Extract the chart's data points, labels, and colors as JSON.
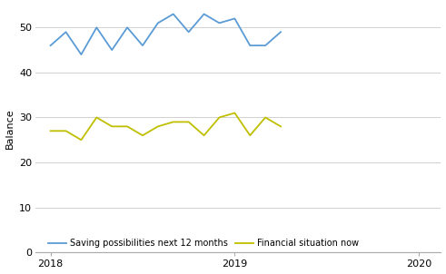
{
  "saving_values": [
    46,
    49,
    44,
    50,
    45,
    50,
    46,
    51,
    53,
    49,
    53,
    51,
    52,
    46,
    46,
    49
  ],
  "financial_values": [
    27,
    27,
    25,
    30,
    28,
    28,
    26,
    28,
    29,
    29,
    26,
    30,
    31,
    26,
    30,
    28
  ],
  "x_start": 2018.0,
  "x_step": 0.08333,
  "n_points": 16,
  "saving_color": "#5B9BD5",
  "financial_color": "#BFBF00",
  "ylabel": "Balance",
  "ylim": [
    0,
    55
  ],
  "yticks": [
    0,
    10,
    20,
    30,
    40,
    50
  ],
  "xlim": [
    2017.92,
    2020.12
  ],
  "xticks": [
    2018,
    2019,
    2020
  ],
  "legend_saving": "Saving possibilities next 12 months",
  "legend_financial": "Financial situation now",
  "background_color": "#ffffff",
  "grid_color": "#d0d0d0",
  "spine_color": "#aaaaaa"
}
